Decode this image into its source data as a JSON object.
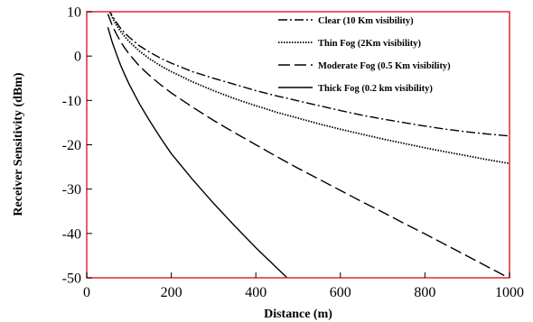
{
  "chart_data": {
    "type": "line",
    "xlabel": "Distance (m)",
    "ylabel": "Receiver Sensitivity (dBm)",
    "xlim": [
      0,
      1000
    ],
    "ylim": [
      -50,
      10
    ],
    "xticks": [
      0,
      200,
      400,
      600,
      800,
      1000
    ],
    "yticks": [
      -50,
      -40,
      -30,
      -20,
      -10,
      0,
      10
    ],
    "grid": false,
    "legend_position": "top-right",
    "frame_color": "#e8343c",
    "series": [
      {
        "name": "Clear (10 Km visibility)",
        "style": "dash-dot",
        "x": [
          50,
          60,
          70,
          80,
          90,
          100,
          125,
          150,
          175,
          200,
          250,
          300,
          350,
          400,
          450,
          500,
          550,
          600,
          650,
          700,
          750,
          800,
          850,
          900,
          950,
          1000
        ],
        "y": [
          11.0,
          9.1,
          7.6,
          6.3,
          5.2,
          4.3,
          2.3,
          0.8,
          -0.5,
          -1.6,
          -3.5,
          -5.0,
          -6.4,
          -7.8,
          -9.0,
          -10.1,
          -11.2,
          -12.3,
          -13.3,
          -14.2,
          -15.0,
          -15.8,
          -16.5,
          -17.1,
          -17.6,
          -18.0
        ]
      },
      {
        "name": "Thin Fog (2Km visibility)",
        "style": "dotted",
        "x": [
          50,
          60,
          70,
          80,
          90,
          100,
          125,
          150,
          175,
          200,
          250,
          300,
          350,
          400,
          450,
          500,
          550,
          600,
          650,
          700,
          750,
          800,
          850,
          900,
          950,
          1000
        ],
        "y": [
          11.0,
          8.8,
          7.0,
          5.6,
          4.4,
          3.3,
          1.1,
          -0.7,
          -2.2,
          -3.5,
          -5.8,
          -7.8,
          -9.6,
          -11.2,
          -12.7,
          -14.0,
          -15.3,
          -16.5,
          -17.6,
          -18.7,
          -19.7,
          -20.7,
          -21.6,
          -22.5,
          -23.4,
          -24.2
        ]
      },
      {
        "name": "Moderate Fog (0.5 Km visibility)",
        "style": "dashed",
        "x": [
          50,
          60,
          70,
          80,
          90,
          100,
          125,
          150,
          175,
          200,
          250,
          300,
          350,
          400,
          450,
          500,
          550,
          600,
          650,
          700,
          750,
          800,
          850,
          900,
          950,
          1000
        ],
        "y": [
          9.5,
          7.0,
          5.0,
          3.3,
          1.8,
          0.5,
          -2.3,
          -4.5,
          -6.5,
          -8.3,
          -11.5,
          -14.5,
          -17.3,
          -20.0,
          -22.7,
          -25.3,
          -27.8,
          -30.3,
          -32.8,
          -35.2,
          -37.7,
          -40.1,
          -42.6,
          -45.1,
          -47.6,
          -50.1
        ]
      },
      {
        "name": "Thick Fog (0.2 km visibility)",
        "style": "solid",
        "x": [
          50,
          60,
          70,
          80,
          90,
          100,
          125,
          150,
          175,
          200,
          250,
          300,
          350,
          400,
          450,
          480
        ],
        "y": [
          6.5,
          3.2,
          0.5,
          -2.0,
          -4.2,
          -6.3,
          -10.8,
          -14.8,
          -18.5,
          -22.0,
          -27.8,
          -33.2,
          -38.3,
          -43.2,
          -47.8,
          -50.5
        ]
      }
    ]
  }
}
